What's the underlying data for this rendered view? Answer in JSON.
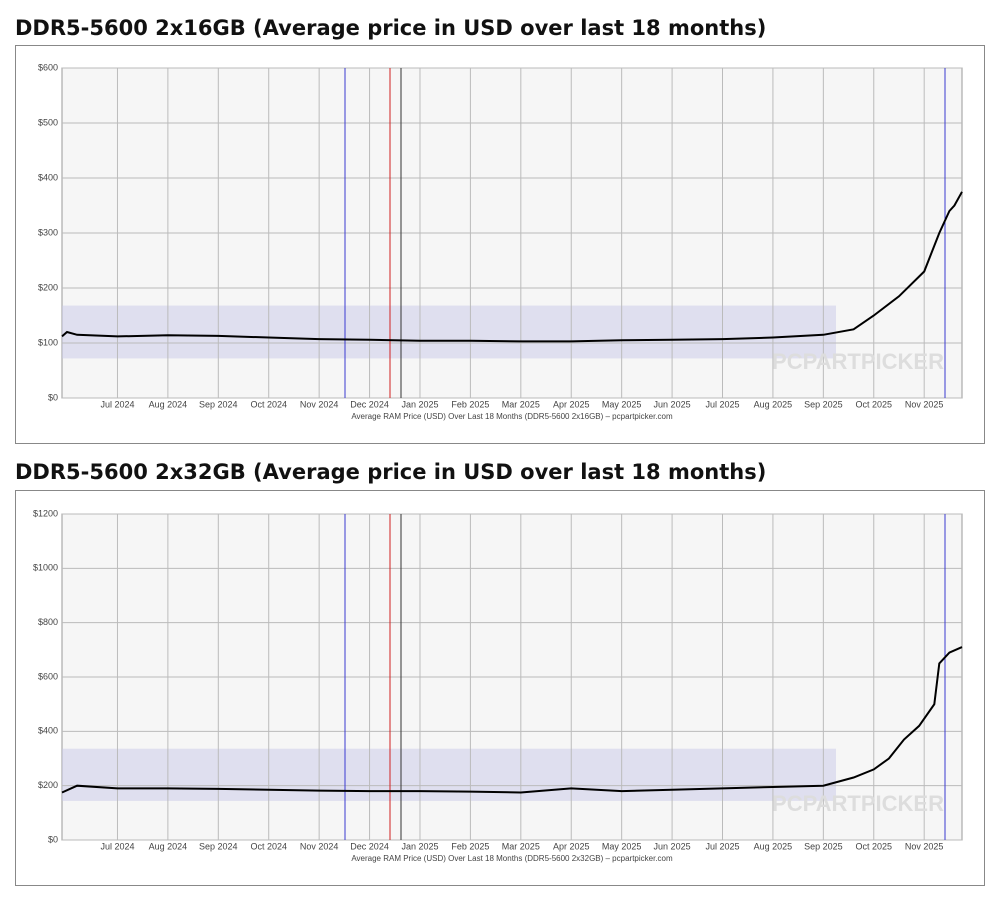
{
  "chart_data": [
    {
      "type": "line",
      "title": "DDR5-5600 2x16GB (Average price in USD over last 18 months)",
      "x_label": "Average RAM Price (USD) Over Last 18 Months (DDR5-5600 2x16GB) – pcpartpicker.com",
      "watermark": "PCPARTPICKER",
      "x": [
        -1.1,
        -1,
        -0.8,
        0,
        1,
        2,
        3,
        4,
        5,
        6,
        7,
        8,
        9,
        10,
        11,
        12,
        13,
        14,
        14.6,
        15,
        15.5,
        16,
        16.3,
        16.5,
        16.6,
        16.75
      ],
      "values": [
        112,
        120,
        115,
        112,
        114,
        113,
        110,
        107,
        106,
        104,
        104,
        103,
        103,
        105,
        106,
        107,
        110,
        115,
        125,
        150,
        185,
        230,
        300,
        340,
        350,
        375
      ],
      "color": "#000000",
      "xlim": [
        -1.1,
        16.75
      ],
      "xticks": [
        {
          "value": 0,
          "label": "Jul 2024"
        },
        {
          "value": 1,
          "label": "Aug 2024"
        },
        {
          "value": 2,
          "label": "Sep 2024"
        },
        {
          "value": 3,
          "label": "Oct 2024"
        },
        {
          "value": 4,
          "label": "Nov 2024"
        },
        {
          "value": 5,
          "label": "Dec 2024"
        },
        {
          "value": 6,
          "label": "Jan 2025"
        },
        {
          "value": 7,
          "label": "Feb 2025"
        },
        {
          "value": 8,
          "label": "Mar 2025"
        },
        {
          "value": 9,
          "label": "Apr 2025"
        },
        {
          "value": 10,
          "label": "May 2025"
        },
        {
          "value": 11,
          "label": "Jun 2025"
        },
        {
          "value": 12,
          "label": "Jul 2025"
        },
        {
          "value": 13,
          "label": "Aug 2025"
        },
        {
          "value": 14,
          "label": "Sep 2025"
        },
        {
          "value": 15,
          "label": "Oct 2025"
        },
        {
          "value": 16,
          "label": "Nov 2025"
        }
      ],
      "ylim": [
        0,
        600
      ],
      "yticks": [
        {
          "value": 0,
          "label": "$0"
        },
        {
          "value": 100,
          "label": "$100"
        },
        {
          "value": 200,
          "label": "$200"
        },
        {
          "value": 300,
          "label": "$300"
        },
        {
          "value": 400,
          "label": "$400"
        },
        {
          "value": 500,
          "label": "$500"
        },
        {
          "value": 600,
          "label": "$600"
        }
      ],
      "grid": true
    },
    {
      "type": "line",
      "title": "DDR5-5600 2x32GB (Average price in USD over last 18 months)",
      "x_label": "Average RAM Price (USD) Over Last 18 Months (DDR5-5600 2x32GB) – pcpartpicker.com",
      "watermark": "PCPARTPICKER",
      "x": [
        -1.1,
        -0.8,
        0,
        1,
        2,
        3,
        4,
        5,
        6,
        7,
        8,
        9,
        10,
        11,
        12,
        13,
        14,
        14.6,
        15,
        15.3,
        15.6,
        15.9,
        16.2,
        16.3,
        16.5,
        16.75
      ],
      "values": [
        175,
        200,
        190,
        190,
        188,
        185,
        182,
        180,
        180,
        178,
        175,
        190,
        180,
        185,
        190,
        195,
        200,
        230,
        260,
        300,
        370,
        420,
        500,
        650,
        690,
        710
      ],
      "color": "#000000",
      "xlim": [
        -1.1,
        16.75
      ],
      "xticks": [
        {
          "value": 0,
          "label": "Jul 2024"
        },
        {
          "value": 1,
          "label": "Aug 2024"
        },
        {
          "value": 2,
          "label": "Sep 2024"
        },
        {
          "value": 3,
          "label": "Oct 2024"
        },
        {
          "value": 4,
          "label": "Nov 2024"
        },
        {
          "value": 5,
          "label": "Dec 2024"
        },
        {
          "value": 6,
          "label": "Jan 2025"
        },
        {
          "value": 7,
          "label": "Feb 2025"
        },
        {
          "value": 8,
          "label": "Mar 2025"
        },
        {
          "value": 9,
          "label": "Apr 2025"
        },
        {
          "value": 10,
          "label": "May 2025"
        },
        {
          "value": 11,
          "label": "Jun 2025"
        },
        {
          "value": 12,
          "label": "Jul 2025"
        },
        {
          "value": 13,
          "label": "Aug 2025"
        },
        {
          "value": 14,
          "label": "Sep 2025"
        },
        {
          "value": 15,
          "label": "Oct 2025"
        },
        {
          "value": 16,
          "label": "Nov 2025"
        }
      ],
      "ylim": [
        0,
        1200
      ],
      "yticks": [
        {
          "value": 0,
          "label": "$0"
        },
        {
          "value": 200,
          "label": "$200"
        },
        {
          "value": 400,
          "label": "$400"
        },
        {
          "value": 600,
          "label": "$600"
        },
        {
          "value": 800,
          "label": "$800"
        },
        {
          "value": 1000,
          "label": "$1000"
        },
        {
          "value": 1200,
          "label": "$1200"
        }
      ],
      "grid": true
    }
  ]
}
